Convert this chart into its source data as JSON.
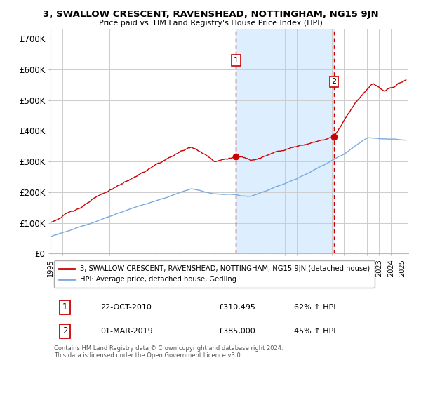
{
  "title": "3, SWALLOW CRESCENT, RAVENSHEAD, NOTTINGHAM, NG15 9JN",
  "subtitle": "Price paid vs. HM Land Registry's House Price Index (HPI)",
  "ylabel_ticks": [
    "£0",
    "£100K",
    "£200K",
    "£300K",
    "£400K",
    "£500K",
    "£600K",
    "£700K"
  ],
  "ytick_vals": [
    0,
    100000,
    200000,
    300000,
    400000,
    500000,
    600000,
    700000
  ],
  "ylim": [
    0,
    730000
  ],
  "xlim_start": 1995.0,
  "xlim_end": 2025.5,
  "xtick_years": [
    1995,
    1996,
    1997,
    1998,
    1999,
    2000,
    2001,
    2002,
    2003,
    2004,
    2005,
    2006,
    2007,
    2008,
    2009,
    2010,
    2011,
    2012,
    2013,
    2014,
    2015,
    2016,
    2017,
    2018,
    2019,
    2020,
    2021,
    2022,
    2023,
    2024,
    2025
  ],
  "sale1_x": 2010.81,
  "sale1_y": 310495,
  "sale1_label": "1",
  "sale1_date": "22-OCT-2010",
  "sale1_price": "£310,495",
  "sale1_hpi": "62% ↑ HPI",
  "sale2_x": 2019.17,
  "sale2_y": 385000,
  "sale2_label": "2",
  "sale2_date": "01-MAR-2019",
  "sale2_price": "£385,000",
  "sale2_hpi": "45% ↑ HPI",
  "red_line_color": "#cc0000",
  "blue_line_color": "#7aaadd",
  "legend_red_label": "3, SWALLOW CRESCENT, RAVENSHEAD, NOTTINGHAM, NG15 9JN (detached house)",
  "legend_blue_label": "HPI: Average price, detached house, Gedling",
  "footnote": "Contains HM Land Registry data © Crown copyright and database right 2024.\nThis data is licensed under the Open Government Licence v3.0.",
  "shaded_region1_start": 2010.81,
  "shaded_region1_end": 2019.17,
  "background_color": "#ffffff",
  "grid_color": "#cccccc",
  "shaded_color": "#ddeeff",
  "marker1_y": 630000,
  "marker2_y": 560000
}
